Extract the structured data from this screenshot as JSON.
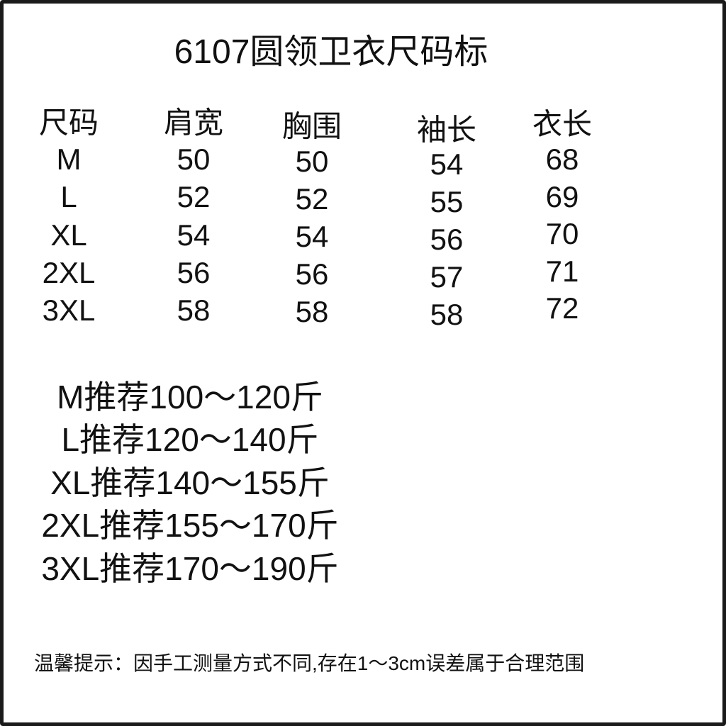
{
  "title": "6107圆领卫衣尺码标",
  "table": {
    "headers": [
      "尺码",
      "肩宽",
      "胸围",
      "袖长",
      "衣长"
    ],
    "rows": [
      [
        "M",
        "50",
        "50",
        "54",
        "68"
      ],
      [
        "L",
        "52",
        "52",
        "55",
        "69"
      ],
      [
        "XL",
        "54",
        "54",
        "56",
        "70"
      ],
      [
        "2XL",
        "56",
        "56",
        "57",
        "71"
      ],
      [
        "3XL",
        "58",
        "58",
        "58",
        "72"
      ]
    ]
  },
  "recommendations": [
    "M推荐100～120斤",
    "L推荐120～140斤",
    "XL推荐140～155斤",
    "2XL推荐155～170斤",
    "3XL推荐170～190斤"
  ],
  "note": "温馨提示：因手工测量方式不同,存在1～3cm误差属于合理范围"
}
